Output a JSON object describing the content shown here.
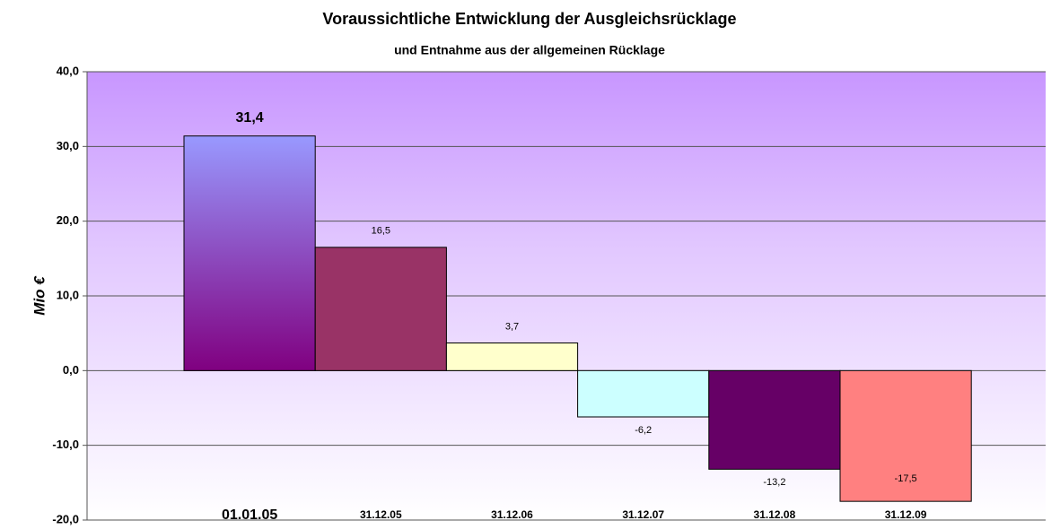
{
  "chart_data": {
    "type": "bar",
    "title": "Voraussichtliche Entwicklung der Ausgleichsrücklage",
    "subtitle": "und Entnahme aus der allgemeinen Rücklage",
    "y_label": "Mio €",
    "categories": [
      "01.01.05",
      "31.12.05",
      "31.12.06",
      "31.12.07",
      "31.12.08",
      "31.12.09"
    ],
    "values": [
      31.4,
      16.5,
      3.7,
      -6.2,
      -13.2,
      -17.5
    ],
    "value_labels": [
      "31,4",
      "16,5",
      "3,7",
      "-6,2",
      "-13,2",
      "-17,5"
    ],
    "colors": [
      "#9999ff",
      "#993366",
      "#ffffcc",
      "#ccffff",
      "#660066",
      "#ff8080"
    ],
    "ylim": [
      -20,
      40
    ],
    "yticks": [
      {
        "value": -20,
        "label": "-20,0"
      },
      {
        "value": -10,
        "label": "-10,0"
      },
      {
        "value": 0,
        "label": "0,0"
      },
      {
        "value": 10,
        "label": "10,0"
      },
      {
        "value": 20,
        "label": "20,0"
      },
      {
        "value": 30,
        "label": "30,0"
      },
      {
        "value": 40,
        "label": "40,0"
      }
    ],
    "grid": true
  }
}
